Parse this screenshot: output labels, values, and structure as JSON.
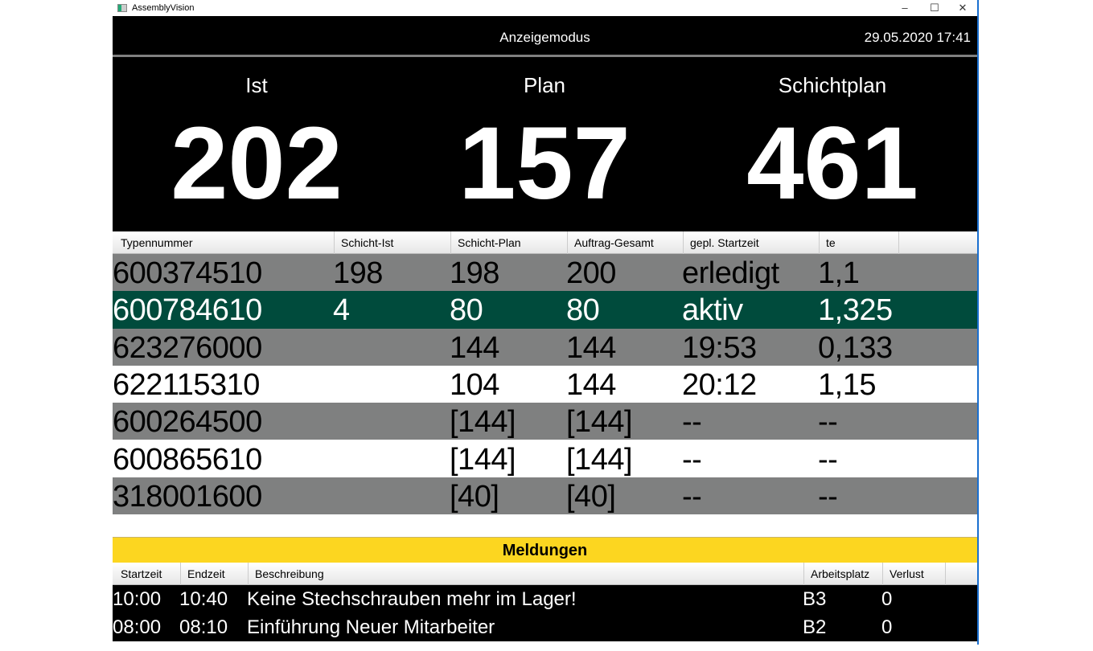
{
  "window": {
    "title": "AssemblyVision",
    "controls": {
      "minimize": "–",
      "maximize": "☐",
      "close": "✕"
    }
  },
  "header": {
    "mode": "Anzeigemodus",
    "datetime": "29.05.2020 17:41"
  },
  "kpis": [
    {
      "label": "Ist",
      "value": "202"
    },
    {
      "label": "Plan",
      "value": "157"
    },
    {
      "label": "Schichtplan",
      "value": "461"
    }
  ],
  "table": {
    "columns": [
      "Typennummer",
      "Schicht-Ist",
      "Schicht-Plan",
      "Auftrag-Gesamt",
      "gepl. Startzeit",
      "te"
    ],
    "rows": [
      {
        "status": "gray",
        "cells": [
          "600374510",
          "198",
          "198",
          "200",
          "erledigt",
          "1,1"
        ]
      },
      {
        "status": "green",
        "cells": [
          "600784610",
          "4",
          "80",
          "80",
          "aktiv",
          "1,325"
        ]
      },
      {
        "status": "gray",
        "cells": [
          "623276000",
          "",
          "144",
          "144",
          "19:53",
          "0,133"
        ]
      },
      {
        "status": "white",
        "cells": [
          "622115310",
          "",
          "104",
          "144",
          "20:12",
          "1,15"
        ]
      },
      {
        "status": "gray",
        "cells": [
          "600264500",
          "",
          "[144]",
          "[144]",
          "--",
          "--"
        ]
      },
      {
        "status": "white",
        "cells": [
          "600865610",
          "",
          "[144]",
          "[144]",
          "--",
          "--"
        ]
      },
      {
        "status": "gray",
        "cells": [
          "318001600",
          "",
          "[40]",
          "[40]",
          "--",
          "--"
        ]
      }
    ]
  },
  "messages": {
    "title": "Meldungen",
    "columns": [
      "Startzeit",
      "Endzeit",
      "Beschreibung",
      "Arbeitsplatz",
      "Verlust"
    ],
    "rows": [
      [
        "10:00",
        "10:40",
        "Keine Stechschrauben mehr im Lager!",
        "B3",
        "0"
      ],
      [
        "08:00",
        "08:10",
        "Einführung Neuer Mitarbeiter",
        "B2",
        "0"
      ]
    ]
  },
  "colors": {
    "row_gray": "#7f8080",
    "row_active": "#004b3c",
    "banner": "#fcd620"
  }
}
